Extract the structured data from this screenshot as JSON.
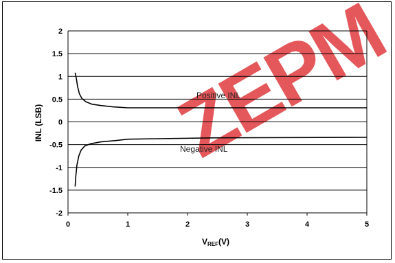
{
  "chart_data": {
    "type": "line",
    "xlabel": {
      "main": "V",
      "sub": "REF",
      "rest": "(V)"
    },
    "ylabel": "INL (LSB)",
    "xlim": [
      0,
      5
    ],
    "ylim": [
      -2,
      2
    ],
    "x_ticks": [
      "0",
      "1",
      "2",
      "3",
      "4",
      "5"
    ],
    "y_ticks": [
      "2",
      "1.5",
      "1",
      "0.5",
      "0",
      "-0.5",
      "-1",
      "-1.5",
      "-2"
    ],
    "grid": "horizontal",
    "series": [
      {
        "name": "Positive INL",
        "points": [
          [
            0.12,
            1.08
          ],
          [
            0.14,
            0.95
          ],
          [
            0.16,
            0.78
          ],
          [
            0.19,
            0.62
          ],
          [
            0.23,
            0.52
          ],
          [
            0.3,
            0.44
          ],
          [
            0.4,
            0.39
          ],
          [
            0.55,
            0.36
          ],
          [
            0.75,
            0.33
          ],
          [
            1.0,
            0.31
          ],
          [
            1.5,
            0.31
          ],
          [
            2.5,
            0.31
          ],
          [
            5.0,
            0.31
          ]
        ]
      },
      {
        "name": "Negative INL",
        "points": [
          [
            0.12,
            -1.42
          ],
          [
            0.13,
            -1.2
          ],
          [
            0.15,
            -0.95
          ],
          [
            0.18,
            -0.75
          ],
          [
            0.22,
            -0.62
          ],
          [
            0.28,
            -0.53
          ],
          [
            0.38,
            -0.48
          ],
          [
            0.55,
            -0.44
          ],
          [
            0.8,
            -0.41
          ],
          [
            1.0,
            -0.38
          ],
          [
            1.5,
            -0.37
          ],
          [
            2.5,
            -0.35
          ],
          [
            5.0,
            -0.34
          ]
        ]
      }
    ],
    "watermark": "ZEPM"
  }
}
